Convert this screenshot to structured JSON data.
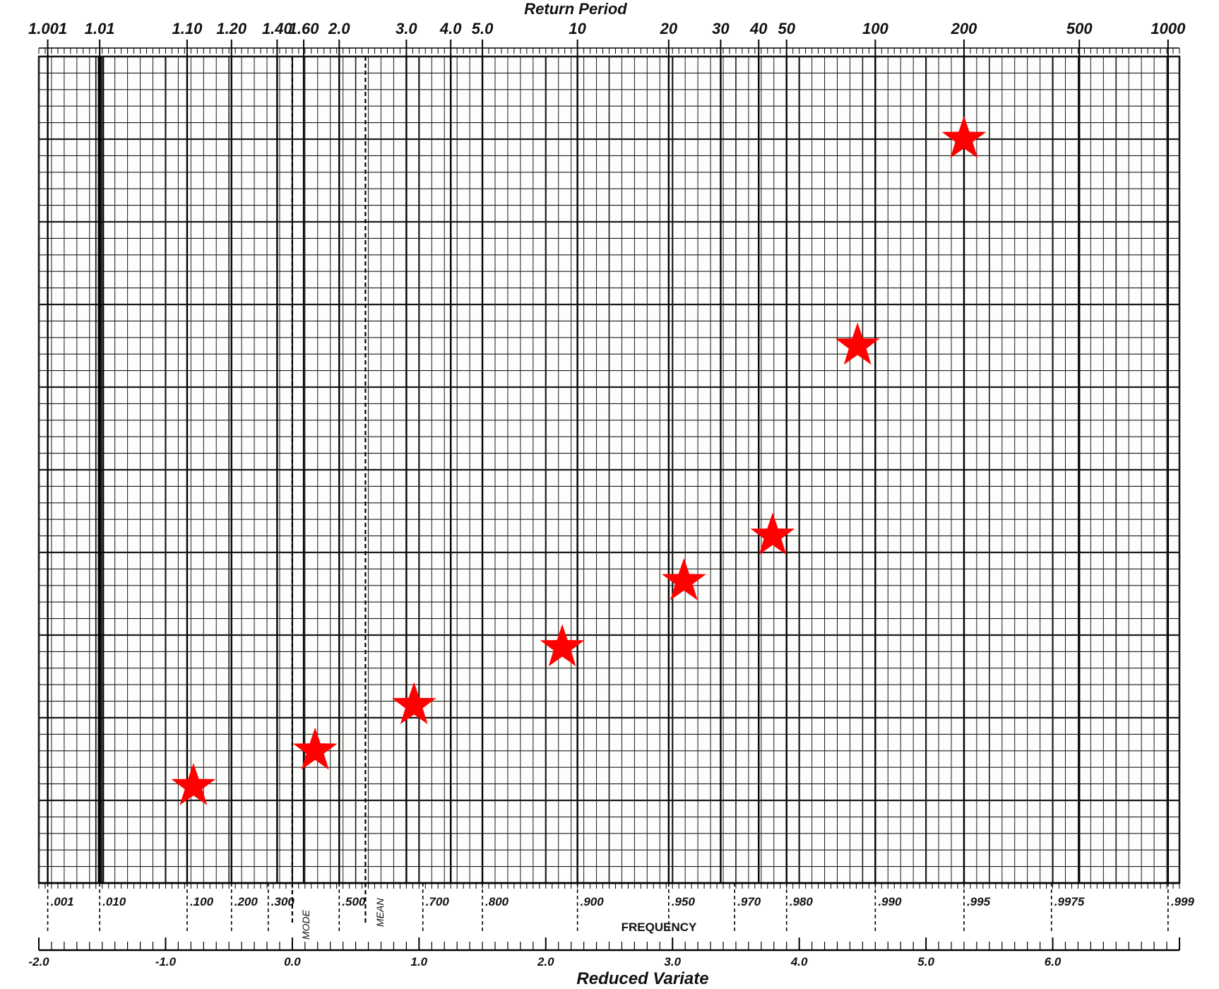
{
  "chart_data": {
    "type": "scatter",
    "title": "",
    "xlabel": "Reduced Variate",
    "top_axis_label": "Return Period",
    "frequency_label": "FREQUENCY",
    "mode_label": "MODE",
    "mean_label": "MEAN",
    "xlim": [
      -2.0,
      7.0
    ],
    "x_ticks": [
      {
        "value": -2.0,
        "label": "-2.0"
      },
      {
        "value": -1.0,
        "label": "-1.0"
      },
      {
        "value": 0.0,
        "label": "0.0"
      },
      {
        "value": 1.0,
        "label": "1.0"
      },
      {
        "value": 2.0,
        "label": "2.0"
      },
      {
        "value": 3.0,
        "label": "3.0"
      },
      {
        "value": 4.0,
        "label": "4.0"
      },
      {
        "value": 5.0,
        "label": "5.0"
      },
      {
        "value": 6.0,
        "label": "6.0"
      }
    ],
    "return_period_ticks": [
      {
        "value": -1.93,
        "label": "1.001"
      },
      {
        "value": -1.52,
        "label": "1.01"
      },
      {
        "value": -0.83,
        "label": "1.10"
      },
      {
        "value": -0.48,
        "label": "1.20"
      },
      {
        "value": -0.12,
        "label": "1.40"
      },
      {
        "value": 0.09,
        "label": "1.60"
      },
      {
        "value": 0.37,
        "label": "2.0"
      },
      {
        "value": 0.9,
        "label": "3.0"
      },
      {
        "value": 1.25,
        "label": "4.0"
      },
      {
        "value": 1.5,
        "label": "5.0"
      },
      {
        "value": 2.25,
        "label": "10"
      },
      {
        "value": 2.97,
        "label": "20"
      },
      {
        "value": 3.38,
        "label": "30"
      },
      {
        "value": 3.68,
        "label": "40"
      },
      {
        "value": 3.9,
        "label": "50"
      },
      {
        "value": 4.6,
        "label": "100"
      },
      {
        "value": 5.3,
        "label": "200"
      },
      {
        "value": 6.21,
        "label": "500"
      },
      {
        "value": 6.91,
        "label": "1000"
      }
    ],
    "frequency_ticks": [
      {
        "value": -1.93,
        "label": ".001"
      },
      {
        "value": -1.52,
        "label": ".010"
      },
      {
        "value": -0.83,
        "label": ".100"
      },
      {
        "value": -0.48,
        "label": ".200"
      },
      {
        "value": -0.19,
        "label": ".300"
      },
      {
        "value": 0.37,
        "label": ".500"
      },
      {
        "value": 1.03,
        "label": ".700"
      },
      {
        "value": 1.5,
        "label": ".800"
      },
      {
        "value": 2.25,
        "label": ".900"
      },
      {
        "value": 2.97,
        "label": ".950"
      },
      {
        "value": 3.49,
        "label": ".970"
      },
      {
        "value": 3.9,
        "label": ".980"
      },
      {
        "value": 4.6,
        "label": ".990"
      },
      {
        "value": 5.3,
        "label": ".995"
      },
      {
        "value": 5.99,
        "label": ".9975"
      },
      {
        "value": 6.91,
        "label": ".999"
      }
    ],
    "mode_x": 0.0,
    "mean_x": 0.577,
    "ylim": [
      0,
      10
    ],
    "grid": true,
    "star_color": "#ff0000",
    "series": [
      {
        "points": [
          {
            "x": -0.78,
            "y": 1.17
          },
          {
            "x": 0.18,
            "y": 1.6
          },
          {
            "x": 0.96,
            "y": 2.15
          },
          {
            "x": 2.13,
            "y": 2.85
          },
          {
            "x": 3.09,
            "y": 3.65
          },
          {
            "x": 3.79,
            "y": 4.2
          },
          {
            "x": 4.46,
            "y": 6.5
          },
          {
            "x": 5.3,
            "y": 9.0
          }
        ]
      }
    ]
  }
}
